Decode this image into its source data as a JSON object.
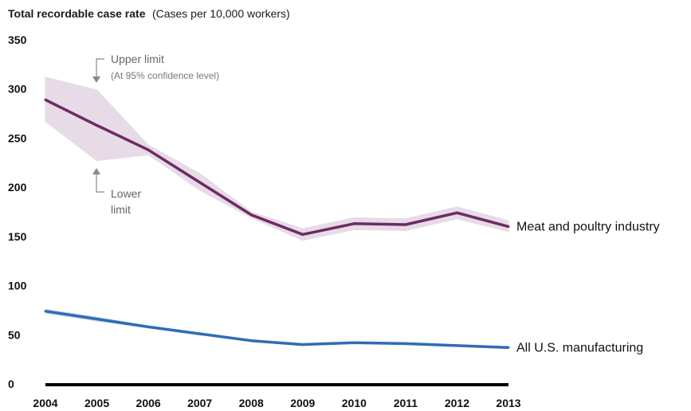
{
  "chart_data": {
    "type": "line",
    "title": "Total recordable case rate",
    "subtitle": "(Cases per 10,000 workers)",
    "x": [
      2004,
      2005,
      2006,
      2007,
      2008,
      2009,
      2010,
      2011,
      2012,
      2013
    ],
    "ylim": [
      0,
      350
    ],
    "yticks": [
      0,
      50,
      100,
      150,
      200,
      250,
      300,
      350
    ],
    "xlabel": "",
    "ylabel": "",
    "grid": false,
    "series": [
      {
        "name": "Meat and poultry industry",
        "values": [
          289,
          263,
          238,
          205,
          172,
          152,
          163,
          162,
          174,
          160
        ],
        "upper": [
          312,
          299,
          243,
          214,
          175,
          158,
          169,
          168,
          180,
          166
        ],
        "lower": [
          267,
          227,
          233,
          197,
          169,
          146,
          157,
          156,
          168,
          155
        ],
        "color": "#6e2a63",
        "band_color": "#e6dbe6"
      },
      {
        "name": "All U.S. manufacturing",
        "values": [
          74,
          66,
          58,
          51,
          44,
          40,
          42,
          41,
          39,
          37
        ],
        "upper": [
          76,
          68,
          59,
          52,
          45,
          40,
          42,
          41,
          39,
          37
        ],
        "lower": [
          72,
          64,
          57,
          50,
          43,
          39,
          41,
          40,
          38,
          36
        ],
        "color": "#2f6cb5",
        "band_color": "#c9d9ee"
      }
    ],
    "annotations": {
      "upper": "Upper limit",
      "upper_note": "(At 95% confidence level)",
      "lower_line1": "Lower",
      "lower_line2": "limit"
    }
  }
}
